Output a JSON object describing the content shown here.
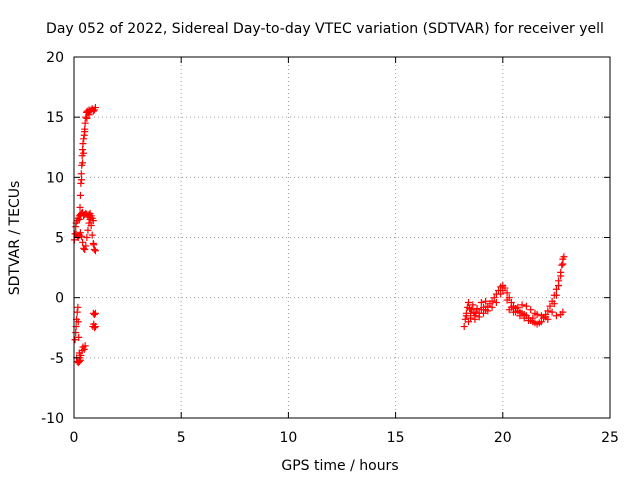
{
  "chart_data": {
    "type": "scatter",
    "title": "Day 052 of 2022, Sidereal Day-to-day VTEC variation (SDTVAR) for receiver yell",
    "xlabel": "GPS time / hours",
    "ylabel": "SDTVAR / TECUs",
    "xlim": [
      0,
      25
    ],
    "ylim": [
      -10,
      20
    ],
    "xticks": [
      0,
      5,
      10,
      15,
      20,
      25
    ],
    "yticks": [
      -10,
      -5,
      0,
      5,
      10,
      15,
      20
    ],
    "grid": true,
    "marker": "+",
    "series": [
      {
        "color": "#ff0000",
        "points": [
          [
            0.05,
            -3.5
          ],
          [
            0.08,
            -2.9
          ],
          [
            0.1,
            -2.4
          ],
          [
            0.12,
            -1.8
          ],
          [
            0.15,
            -1.2
          ],
          [
            0.18,
            -0.8
          ],
          [
            0.2,
            -2.0
          ],
          [
            0.22,
            -3.3
          ],
          [
            0.25,
            -4.6
          ],
          [
            0.28,
            -5.0
          ],
          [
            0.3,
            -5.2
          ],
          [
            0.12,
            -5.0
          ],
          [
            0.15,
            -5.3
          ],
          [
            0.2,
            -5.4
          ],
          [
            0.25,
            -5.3
          ],
          [
            0.32,
            -4.8
          ],
          [
            0.38,
            -4.4
          ],
          [
            0.42,
            -4.1
          ],
          [
            0.48,
            -4.3
          ],
          [
            0.52,
            -4.0
          ],
          [
            0.02,
            4.8
          ],
          [
            0.05,
            5.3
          ],
          [
            0.08,
            5.9
          ],
          [
            0.1,
            6.2
          ],
          [
            0.15,
            6.4
          ],
          [
            0.2,
            6.6
          ],
          [
            0.25,
            6.8
          ],
          [
            0.3,
            6.9
          ],
          [
            0.35,
            7.0
          ],
          [
            0.4,
            7.1
          ],
          [
            0.45,
            6.8
          ],
          [
            0.5,
            6.9
          ],
          [
            0.55,
            7.0
          ],
          [
            0.6,
            6.9
          ],
          [
            0.65,
            6.8
          ],
          [
            0.7,
            6.9
          ],
          [
            0.75,
            7.0
          ],
          [
            0.8,
            6.8
          ],
          [
            0.85,
            6.6
          ],
          [
            0.9,
            6.4
          ],
          [
            0.1,
            5.3
          ],
          [
            0.15,
            5.1
          ],
          [
            0.2,
            5.0
          ],
          [
            0.25,
            5.2
          ],
          [
            0.3,
            5.4
          ],
          [
            0.35,
            5.1
          ],
          [
            0.4,
            4.6
          ],
          [
            0.45,
            4.1
          ],
          [
            0.5,
            4.0
          ],
          [
            0.55,
            4.3
          ],
          [
            0.6,
            5.0
          ],
          [
            0.65,
            5.6
          ],
          [
            0.7,
            6.2
          ],
          [
            0.75,
            6.5
          ],
          [
            0.8,
            6.0
          ],
          [
            0.85,
            5.2
          ],
          [
            0.9,
            4.5
          ],
          [
            0.95,
            4.0
          ],
          [
            1.0,
            3.9
          ],
          [
            0.92,
            4.4
          ],
          [
            0.25,
            6.5
          ],
          [
            0.28,
            7.5
          ],
          [
            0.3,
            8.5
          ],
          [
            0.32,
            9.5
          ],
          [
            0.34,
            10.3
          ],
          [
            0.36,
            11.0
          ],
          [
            0.38,
            11.8
          ],
          [
            0.4,
            12.3
          ],
          [
            0.42,
            12.8
          ],
          [
            0.45,
            13.2
          ],
          [
            0.48,
            13.5
          ],
          [
            0.5,
            13.8
          ],
          [
            0.52,
            14.5
          ],
          [
            0.55,
            15.0
          ],
          [
            0.58,
            15.4
          ],
          [
            0.62,
            15.5
          ],
          [
            0.66,
            15.4
          ],
          [
            0.7,
            15.6
          ],
          [
            0.75,
            15.5
          ],
          [
            0.8,
            15.6
          ],
          [
            0.85,
            15.7
          ],
          [
            0.9,
            15.5
          ],
          [
            0.95,
            15.6
          ],
          [
            1.0,
            15.8
          ],
          [
            0.7,
            15.2
          ],
          [
            0.6,
            14.9
          ],
          [
            0.5,
            14.0
          ],
          [
            0.45,
            12.0
          ],
          [
            0.4,
            11.2
          ],
          [
            0.35,
            9.8
          ],
          [
            0.9,
            -1.3
          ],
          [
            0.95,
            -1.4
          ],
          [
            1.0,
            -1.3
          ],
          [
            0.92,
            -2.2
          ],
          [
            0.96,
            -2.5
          ],
          [
            1.0,
            -2.4
          ],
          [
            0.88,
            -2.4
          ]
        ]
      },
      {
        "color": "#ff0000",
        "points": [
          [
            18.2,
            -2.4
          ],
          [
            18.25,
            -1.8
          ],
          [
            18.3,
            -1.3
          ],
          [
            18.35,
            -0.8
          ],
          [
            18.4,
            -0.4
          ],
          [
            18.45,
            -0.9
          ],
          [
            18.5,
            -1.3
          ],
          [
            18.55,
            -1.0
          ],
          [
            18.6,
            -0.6
          ],
          [
            18.65,
            -1.2
          ],
          [
            18.7,
            -1.5
          ],
          [
            18.75,
            -1.2
          ],
          [
            18.8,
            -0.9
          ],
          [
            18.9,
            -1.3
          ],
          [
            19.0,
            -1.0
          ],
          [
            19.1,
            -0.8
          ],
          [
            19.2,
            -1.0
          ],
          [
            19.3,
            -0.7
          ],
          [
            19.4,
            -0.5
          ],
          [
            19.5,
            -0.3
          ],
          [
            19.6,
            0.0
          ],
          [
            19.7,
            0.3
          ],
          [
            19.8,
            0.6
          ],
          [
            19.9,
            0.9
          ],
          [
            20.0,
            1.0
          ],
          [
            20.1,
            0.8
          ],
          [
            20.2,
            0.4
          ],
          [
            20.3,
            0.0
          ],
          [
            20.4,
            -0.4
          ],
          [
            20.5,
            -0.7
          ],
          [
            20.6,
            -0.9
          ],
          [
            20.7,
            -1.1
          ],
          [
            20.8,
            -1.2
          ],
          [
            20.9,
            -1.3
          ],
          [
            21.0,
            -1.4
          ],
          [
            21.1,
            -1.5
          ],
          [
            21.2,
            -1.7
          ],
          [
            21.3,
            -1.9
          ],
          [
            21.4,
            -2.0
          ],
          [
            21.5,
            -2.1
          ],
          [
            21.6,
            -2.2
          ],
          [
            21.7,
            -2.1
          ],
          [
            21.8,
            -2.0
          ],
          [
            21.9,
            -1.7
          ],
          [
            22.0,
            -1.4
          ],
          [
            22.1,
            -1.1
          ],
          [
            22.2,
            -0.7
          ],
          [
            22.3,
            -0.3
          ],
          [
            22.4,
            0.2
          ],
          [
            22.5,
            0.7
          ],
          [
            22.6,
            1.4
          ],
          [
            22.7,
            2.1
          ],
          [
            22.75,
            2.7
          ],
          [
            22.8,
            3.2
          ],
          [
            22.85,
            3.4
          ],
          [
            22.8,
            2.8
          ],
          [
            22.7,
            1.8
          ],
          [
            22.6,
            1.0
          ],
          [
            22.5,
            0.2
          ],
          [
            22.4,
            -0.5
          ],
          [
            18.3,
            -1.5
          ],
          [
            18.5,
            -1.7
          ],
          [
            18.7,
            -1.8
          ],
          [
            18.9,
            -1.6
          ],
          [
            19.1,
            -1.3
          ],
          [
            19.3,
            -1.1
          ],
          [
            19.5,
            -0.8
          ],
          [
            19.7,
            -0.4
          ],
          [
            19.9,
            0.3
          ],
          [
            20.0,
            0.6
          ],
          [
            20.2,
            -0.2
          ],
          [
            20.4,
            -0.8
          ],
          [
            20.6,
            -1.2
          ],
          [
            20.8,
            -1.5
          ],
          [
            21.0,
            -1.7
          ],
          [
            21.2,
            -1.9
          ],
          [
            21.4,
            -1.7
          ],
          [
            21.6,
            -1.4
          ],
          [
            21.8,
            -1.5
          ],
          [
            22.0,
            -1.6
          ],
          [
            20.3,
            -1.0
          ],
          [
            20.5,
            -1.2
          ],
          [
            20.7,
            -0.8
          ],
          [
            20.9,
            -0.6
          ],
          [
            21.1,
            -0.7
          ],
          [
            21.3,
            -1.0
          ],
          [
            21.5,
            -1.3
          ],
          [
            22.1,
            -1.8
          ],
          [
            22.3,
            -1.2
          ],
          [
            22.5,
            -1.5
          ],
          [
            22.7,
            -1.4
          ],
          [
            22.8,
            -1.2
          ],
          [
            18.4,
            -2.0
          ],
          [
            19.0,
            -0.4
          ],
          [
            19.2,
            -0.3
          ]
        ]
      }
    ]
  }
}
